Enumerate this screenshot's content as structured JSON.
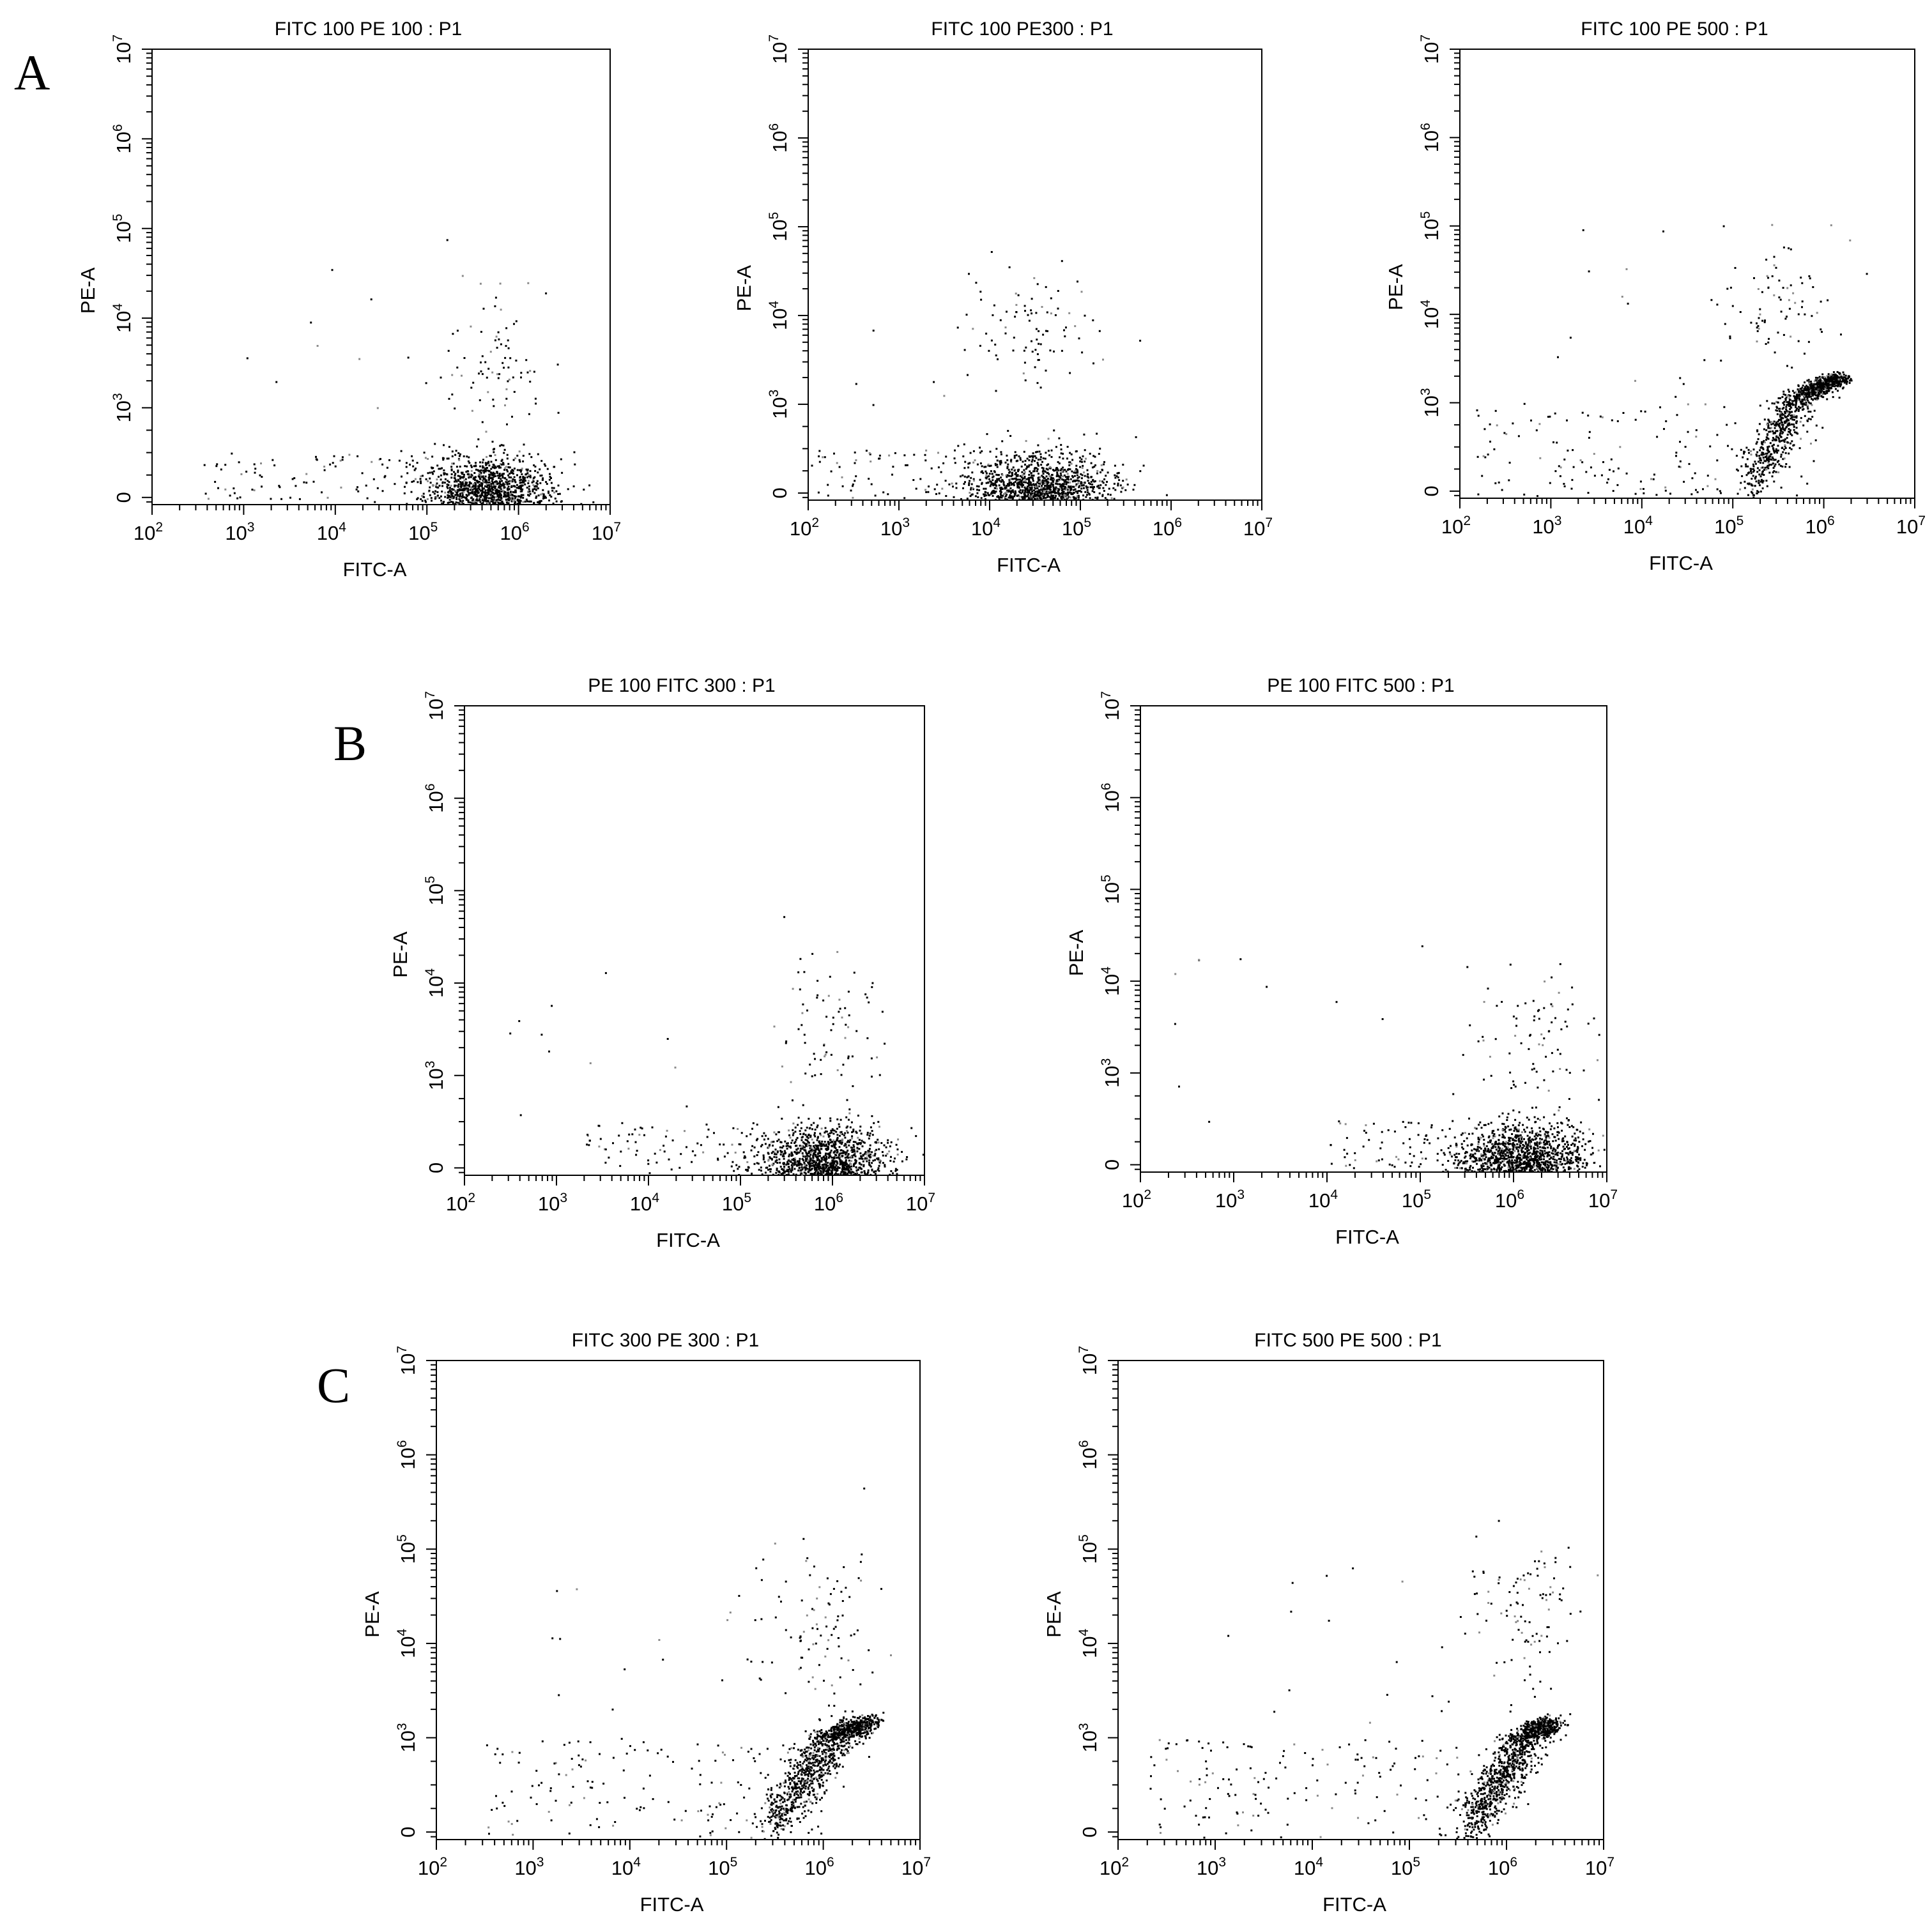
{
  "panel_labels": [
    "A",
    "B",
    "C"
  ],
  "chart_data": [
    {
      "type": "scatter",
      "panel": "A",
      "title": "FITC 100 PE 100 : P1",
      "xlabel": "FITC-A",
      "ylabel": "PE-A",
      "x_scale": "log",
      "y_scale": "biexponential",
      "xlim": [
        100,
        10000000
      ],
      "ylim": [
        -80,
        10000000
      ],
      "x_ticks": [
        100,
        1000,
        10000,
        100000,
        1000000,
        10000000
      ],
      "y_ticks": [
        0,
        1000,
        10000,
        100000,
        1000000,
        10000000
      ],
      "x_tick_labels": [
        "10^2",
        "10^3",
        "10^4",
        "10^5",
        "10^6",
        "10^7"
      ],
      "y_tick_labels": [
        "0",
        "10^3",
        "10^4",
        "10^5",
        "10^6",
        "10^7"
      ],
      "grid": false,
      "legend": "none",
      "series": [
        {
          "values": [
            {
              "role": "main",
              "x_center": 450000,
              "y_center": 30,
              "x_spread_decades": 0.35,
              "y_spread": 200,
              "n": 1500
            },
            {
              "role": "upper",
              "x_center": 450000,
              "y_center": 2500,
              "x_spread_decades": 0.3,
              "y_spread_decades": 0.45,
              "n": 90
            },
            {
              "role": "diffuse",
              "x_min": 300,
              "x_max": 2500000,
              "y_min": -50,
              "y_max": 500,
              "n": 140
            },
            {
              "role": "sparse",
              "x_min": 1000,
              "x_max": 2000000,
              "y_min": 500,
              "y_max": 50000,
              "n": 14
            }
          ]
        }
      ]
    },
    {
      "type": "scatter",
      "panel": "A",
      "title": "FITC 100 PE300 : P1",
      "xlabel": "FITC-A",
      "ylabel": "PE-A",
      "x_scale": "log",
      "y_scale": "biexponential",
      "xlim": [
        100,
        10000000
      ],
      "ylim": [
        -80,
        10000000
      ],
      "x_ticks": [
        100,
        1000,
        10000,
        100000,
        1000000,
        10000000
      ],
      "y_ticks": [
        0,
        1000,
        10000,
        100000,
        1000000,
        10000000
      ],
      "x_tick_labels": [
        "10^2",
        "10^3",
        "10^4",
        "10^5",
        "10^6",
        "10^7"
      ],
      "y_tick_labels": [
        "0",
        "10^3",
        "10^4",
        "10^5",
        "10^6",
        "10^7"
      ],
      "grid": false,
      "legend": "none",
      "series": [
        {
          "values": [
            {
              "role": "main",
              "x_center": 35000,
              "y_center": 30,
              "x_spread_decades": 0.4,
              "y_spread": 200,
              "n": 1500
            },
            {
              "role": "upper",
              "x_center": 30000,
              "y_center": 6000,
              "x_spread_decades": 0.35,
              "y_spread_decades": 0.35,
              "n": 90
            },
            {
              "role": "diffuse",
              "x_min": 100,
              "x_max": 300000,
              "y_min": -50,
              "y_max": 500,
              "n": 140
            },
            {
              "role": "sparse",
              "x_min": 300,
              "x_max": 200000,
              "y_min": 500,
              "y_max": 20000,
              "n": 10
            }
          ]
        }
      ]
    },
    {
      "type": "scatter",
      "panel": "A",
      "title": "FITC 100 PE 500 : P1",
      "xlabel": "FITC-A",
      "ylabel": "PE-A",
      "x_scale": "log",
      "y_scale": "biexponential",
      "xlim": [
        100,
        10000000
      ],
      "ylim": [
        -80,
        10000000
      ],
      "x_ticks": [
        100,
        1000,
        10000,
        100000,
        1000000,
        10000000
      ],
      "y_ticks": [
        0,
        1000,
        10000,
        100000,
        1000000,
        10000000
      ],
      "x_tick_labels": [
        "10^2",
        "10^3",
        "10^4",
        "10^5",
        "10^6",
        "10^7"
      ],
      "y_tick_labels": [
        "0",
        "10^3",
        "10^4",
        "10^5",
        "10^6",
        "10^7"
      ],
      "grid": false,
      "legend": "none",
      "series": [
        {
          "values": [
            {
              "role": "diagonal",
              "x_from": 150000,
              "x_to": 1500000,
              "y_from": 50,
              "y_to": 2000,
              "n": 1100
            },
            {
              "role": "upper",
              "x_center": 300000,
              "y_center": 15000,
              "x_spread_decades": 0.3,
              "y_spread_decades": 0.4,
              "n": 80
            },
            {
              "role": "diffuse",
              "x_min": 150,
              "x_max": 1000000,
              "y_min": -50,
              "y_max": 1000,
              "n": 160
            },
            {
              "role": "sparse",
              "x_min": 1000,
              "x_max": 1000000,
              "y_min": 1000,
              "y_max": 100000,
              "n": 20
            }
          ]
        }
      ]
    },
    {
      "type": "scatter",
      "panel": "B",
      "title": "PE 100 FITC 300 : P1",
      "xlabel": "FITC-A",
      "ylabel": "PE-A",
      "x_scale": "log",
      "y_scale": "biexponential",
      "xlim": [
        100,
        10000000
      ],
      "ylim": [
        -80,
        10000000
      ],
      "x_ticks": [
        100,
        1000,
        10000,
        100000,
        1000000,
        10000000
      ],
      "y_ticks": [
        0,
        1000,
        10000,
        100000,
        1000000,
        10000000
      ],
      "x_tick_labels": [
        "10^2",
        "10^3",
        "10^4",
        "10^5",
        "10^6",
        "10^7"
      ],
      "y_tick_labels": [
        "0",
        "10^3",
        "10^4",
        "10^5",
        "10^6",
        "10^7"
      ],
      "grid": false,
      "legend": "none",
      "series": [
        {
          "values": [
            {
              "role": "main",
              "x_center": 800000,
              "y_center": 30,
              "x_spread_decades": 0.35,
              "y_spread": 200,
              "n": 1500
            },
            {
              "role": "upper",
              "x_center": 1000000,
              "y_center": 3000,
              "x_spread_decades": 0.3,
              "y_spread_decades": 0.45,
              "n": 80
            },
            {
              "role": "diffuse",
              "x_min": 2000,
              "x_max": 3000000,
              "y_min": -50,
              "y_max": 500,
              "n": 140
            },
            {
              "role": "sparse",
              "x_min": 300,
              "x_max": 3000000,
              "y_min": 500,
              "y_max": 30000,
              "n": 16
            }
          ]
        }
      ]
    },
    {
      "type": "scatter",
      "panel": "B",
      "title": "PE 100 FITC 500 : P1",
      "xlabel": "FITC-A",
      "ylabel": "PE-A",
      "x_scale": "log",
      "y_scale": "biexponential",
      "xlim": [
        100,
        10000000
      ],
      "ylim": [
        -80,
        10000000
      ],
      "x_ticks": [
        100,
        1000,
        10000,
        100000,
        1000000,
        10000000
      ],
      "y_ticks": [
        0,
        1000,
        10000,
        100000,
        1000000,
        10000000
      ],
      "x_tick_labels": [
        "10^2",
        "10^3",
        "10^4",
        "10^5",
        "10^6",
        "10^7"
      ],
      "y_tick_labels": [
        "0",
        "10^3",
        "10^4",
        "10^5",
        "10^6",
        "10^7"
      ],
      "grid": false,
      "legend": "none",
      "series": [
        {
          "values": [
            {
              "role": "main",
              "x_center": 1200000,
              "y_center": 30,
              "x_spread_decades": 0.35,
              "y_spread": 200,
              "n": 1500
            },
            {
              "role": "upper",
              "x_center": 1500000,
              "y_center": 3000,
              "x_spread_decades": 0.3,
              "y_spread_decades": 0.4,
              "n": 80
            },
            {
              "role": "diffuse",
              "x_min": 10000,
              "x_max": 5000000,
              "y_min": -50,
              "y_max": 500,
              "n": 130
            },
            {
              "role": "sparse",
              "x_min": 100,
              "x_max": 3000000,
              "y_min": 400,
              "y_max": 30000,
              "n": 16
            }
          ]
        }
      ]
    },
    {
      "type": "scatter",
      "panel": "C",
      "title": "FITC 300 PE 300 : P1",
      "xlabel": "FITC-A",
      "ylabel": "PE-A",
      "x_scale": "log",
      "y_scale": "biexponential",
      "xlim": [
        100,
        10000000
      ],
      "ylim": [
        -80,
        10000000
      ],
      "x_ticks": [
        100,
        1000,
        10000,
        100000,
        1000000,
        10000000
      ],
      "y_ticks": [
        0,
        1000,
        10000,
        100000,
        1000000,
        10000000
      ],
      "x_tick_labels": [
        "10^2",
        "10^3",
        "10^4",
        "10^5",
        "10^6",
        "10^7"
      ],
      "y_tick_labels": [
        "0",
        "10^3",
        "10^4",
        "10^5",
        "10^6",
        "10^7"
      ],
      "grid": false,
      "legend": "none",
      "series": [
        {
          "values": [
            {
              "role": "diagonal",
              "x_from": 250000,
              "x_to": 3000000,
              "y_from": 50,
              "y_to": 1500,
              "n": 1200
            },
            {
              "role": "upper",
              "x_center": 1000000,
              "y_center": 15000,
              "x_spread_decades": 0.35,
              "y_spread_decades": 0.45,
              "n": 100
            },
            {
              "role": "diffuse",
              "x_min": 300,
              "x_max": 1000000,
              "y_min": -50,
              "y_max": 1000,
              "n": 170
            },
            {
              "role": "sparse",
              "x_min": 1000,
              "x_max": 3000000,
              "y_min": 1000,
              "y_max": 50000,
              "n": 20
            }
          ]
        }
      ]
    },
    {
      "type": "scatter",
      "panel": "C",
      "title": "FITC 500 PE 500 : P1",
      "xlabel": "FITC-A",
      "ylabel": "PE-A",
      "x_scale": "log",
      "y_scale": "biexponential",
      "xlim": [
        100,
        10000000
      ],
      "ylim": [
        -80,
        10000000
      ],
      "x_ticks": [
        100,
        1000,
        10000,
        100000,
        1000000,
        10000000
      ],
      "y_ticks": [
        0,
        1000,
        10000,
        100000,
        1000000,
        10000000
      ],
      "x_tick_labels": [
        "10^2",
        "10^3",
        "10^4",
        "10^5",
        "10^6",
        "10^7"
      ],
      "y_tick_labels": [
        "0",
        "10^3",
        "10^4",
        "10^5",
        "10^6",
        "10^7"
      ],
      "grid": false,
      "legend": "none",
      "series": [
        {
          "values": [
            {
              "role": "diagonal",
              "x_from": 400000,
              "x_to": 3000000,
              "y_from": 50,
              "y_to": 1500,
              "n": 1200
            },
            {
              "role": "upper",
              "x_center": 1500000,
              "y_center": 20000,
              "x_spread_decades": 0.3,
              "y_spread_decades": 0.45,
              "n": 100
            },
            {
              "role": "diffuse",
              "x_min": 200,
              "x_max": 1000000,
              "y_min": -50,
              "y_max": 1000,
              "n": 170
            },
            {
              "role": "sparse",
              "x_min": 1000,
              "x_max": 3000000,
              "y_min": 1000,
              "y_max": 100000,
              "n": 20
            }
          ]
        }
      ]
    }
  ]
}
